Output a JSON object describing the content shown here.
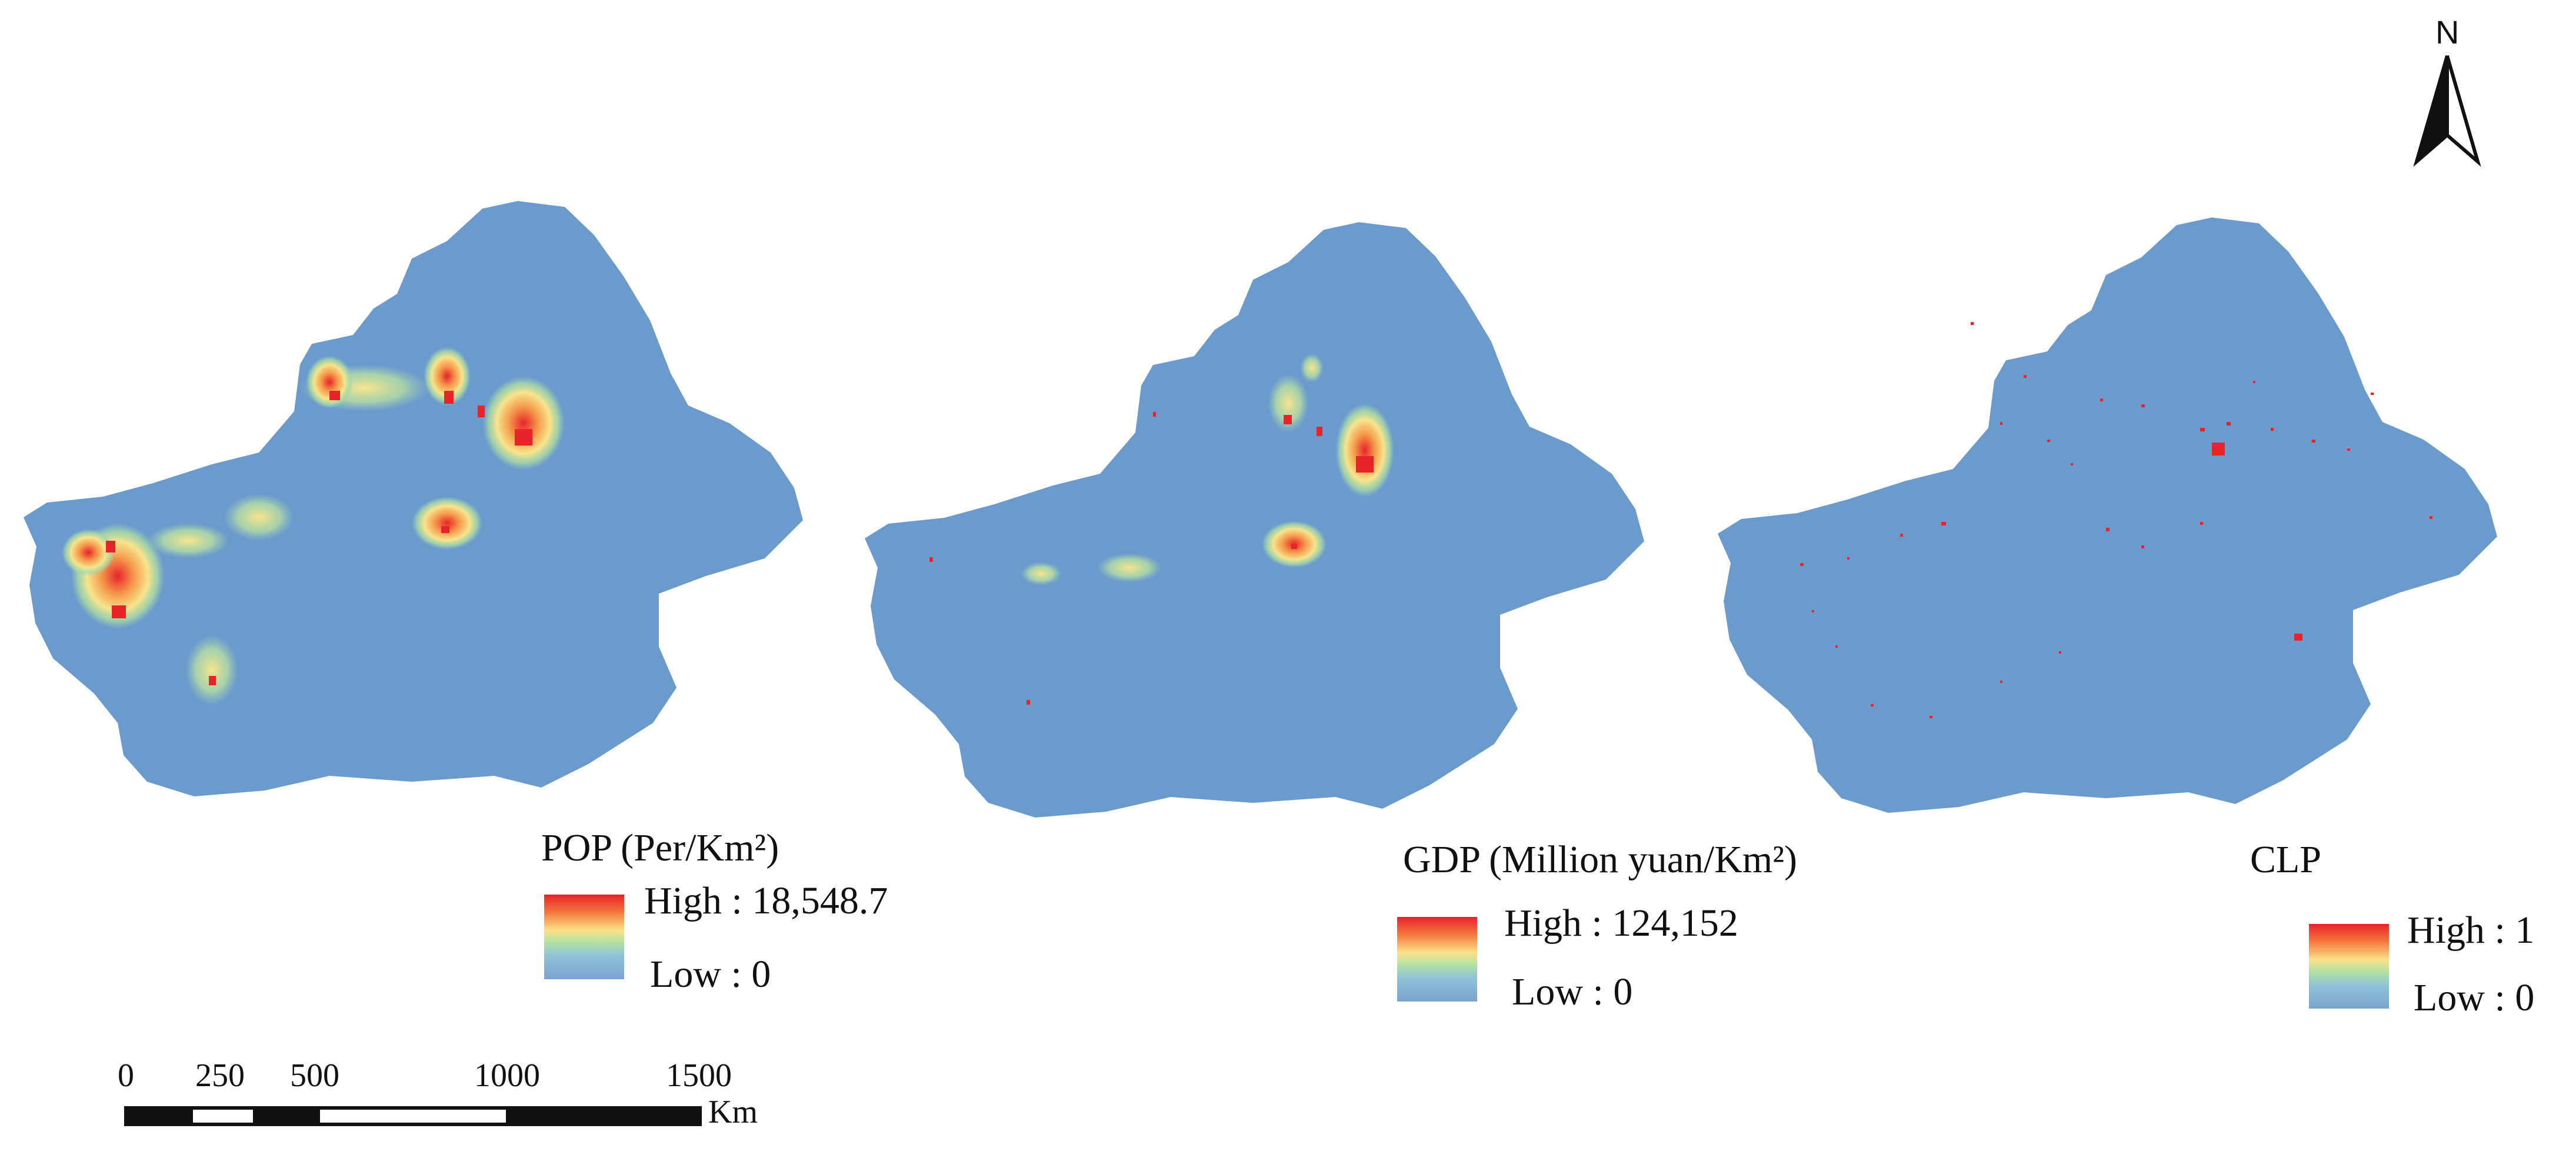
{
  "panels": [
    {
      "id": "pop",
      "legend_title": "POP (Per/Km²)",
      "high_label": "High : 18,548.7",
      "low_label": "Low : 0"
    },
    {
      "id": "gdp",
      "legend_title": "GDP (Million yuan/Km²)",
      "high_label": "High : 124,152",
      "low_label": "Low : 0"
    },
    {
      "id": "clp",
      "legend_title": "CLP",
      "high_label": "High : 1",
      "low_label": "Low : 0"
    }
  ],
  "colors": {
    "region_fill": "#6b9bcc",
    "high": "#e8232a",
    "mid": "#fbe08a",
    "low": "#7aa3cf"
  },
  "scale_bar": {
    "ticks": [
      "0",
      "250",
      "500",
      "1000",
      "1500"
    ],
    "unit": "Km"
  },
  "north_arrow": {
    "label": "N",
    "icon": "north-arrow-icon"
  }
}
